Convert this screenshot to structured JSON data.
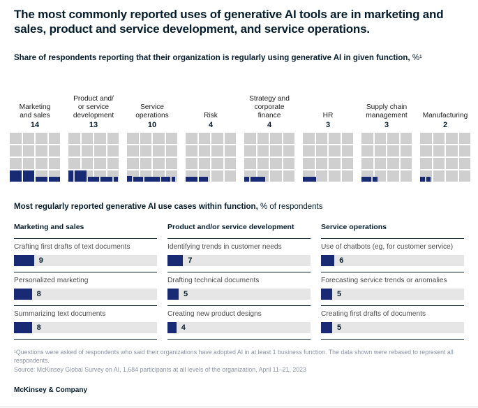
{
  "title": "The most commonly reported uses of generative AI tools are in marketing and sales, product and service development, and service operations.",
  "subtitle": {
    "text": "Share of respondents reporting that their organization is regularly using generative AI in given function,",
    "unit": " %¹"
  },
  "colors": {
    "navy": "#182a74",
    "waffle_gray": "#cfcfcf",
    "track_gray": "#e6e6e6",
    "ink": "#051c2c",
    "footnote_gray": "#8c94a4"
  },
  "waffles": [
    {
      "label": "Marketing\nand sales",
      "value": 14,
      "segments": [
        [
          1,
          1
        ],
        [
          1,
          1
        ],
        [
          1,
          0.42
        ],
        [
          1,
          0.42
        ]
      ]
    },
    {
      "label": "Product and/\nor service\ndevelopment",
      "value": 13,
      "segments": [
        [
          0.45,
          1
        ],
        [
          1,
          1
        ],
        [
          1,
          0.42
        ],
        [
          1,
          0.42
        ],
        [
          0.35,
          0.42
        ]
      ]
    },
    {
      "label": "Service\noperations",
      "value": 10,
      "segments": [
        [
          0.4,
          0.5
        ],
        [
          0.9,
          0.42
        ],
        [
          1.3,
          0.42
        ],
        [
          0.8,
          0.42
        ],
        [
          0.3,
          0.42
        ]
      ]
    },
    {
      "label": "Risk",
      "value": 4,
      "segments": [
        [
          1,
          0.42
        ],
        [
          0.8,
          0.42
        ]
      ]
    },
    {
      "label": "Strategy and\ncorporate\nfinance",
      "value": 4,
      "segments": [
        [
          0.4,
          0.42
        ],
        [
          1.3,
          0.42
        ]
      ]
    },
    {
      "label": "HR",
      "value": 3,
      "segments": [
        [
          1.15,
          0.42
        ]
      ]
    },
    {
      "label": "Supply chain\nmanagement",
      "value": 3,
      "segments": [
        [
          0.85,
          0.42
        ],
        [
          0.4,
          0.42
        ]
      ]
    },
    {
      "label": "Manufacturing",
      "value": 2,
      "segments": [
        [
          0.4,
          0.42
        ],
        [
          0.4,
          0.42
        ]
      ]
    }
  ],
  "usecases_heading": {
    "bold": "Most regularly reported generative AI use cases within function,",
    "unit": " % of respondents"
  },
  "chart_data": [
    {
      "type": "bar",
      "variant": "waffle-grid",
      "title": "Share of respondents reporting that their organization is regularly using generative AI in given function, %",
      "categories": [
        "Marketing and sales",
        "Product and/or service development",
        "Service operations",
        "Risk",
        "Strategy and corporate finance",
        "HR",
        "Supply chain management",
        "Manufacturing"
      ],
      "values": [
        14,
        13,
        10,
        4,
        4,
        3,
        3,
        2
      ],
      "grid": {
        "rows": 4,
        "cols": 4
      },
      "legend_position": "none",
      "ylim": [
        0,
        100
      ]
    },
    {
      "type": "bar",
      "title": "Most regularly reported generative AI use cases within function, % of respondents",
      "groups": [
        {
          "name": "Marketing and sales",
          "items": [
            {
              "label": "Crafting first drafts of text documents",
              "value": 9
            },
            {
              "label": "Personalized marketing",
              "value": 8
            },
            {
              "label": "Summarizing text documents",
              "value": 8
            }
          ]
        },
        {
          "name": "Product and/or service development",
          "items": [
            {
              "label": "Identifying trends in customer needs",
              "value": 7
            },
            {
              "label": "Drafting technical documents",
              "value": 5
            },
            {
              "label": "Creating new product designs",
              "value": 4
            }
          ]
        },
        {
          "name": "Service operations",
          "items": [
            {
              "label": "Use of chatbots (eg, for customer service)",
              "value": 6
            },
            {
              "label": "Forecasting service trends or anomalies",
              "value": 5
            },
            {
              "label": "Creating first drafts of documents",
              "value": 5
            }
          ]
        }
      ],
      "xlim": [
        0,
        64
      ],
      "legend_position": "none"
    }
  ],
  "footnotes": [
    "¹Questions were asked of respondents who said their organizations have adopted AI in at least 1 business function. The data shown were rebased to represent all respondents.",
    "Source: McKinsey Global Survey on AI, 1,684 participants at all levels of the organization, April 11–21, 2023"
  ],
  "brand": "McKinsey & Company"
}
